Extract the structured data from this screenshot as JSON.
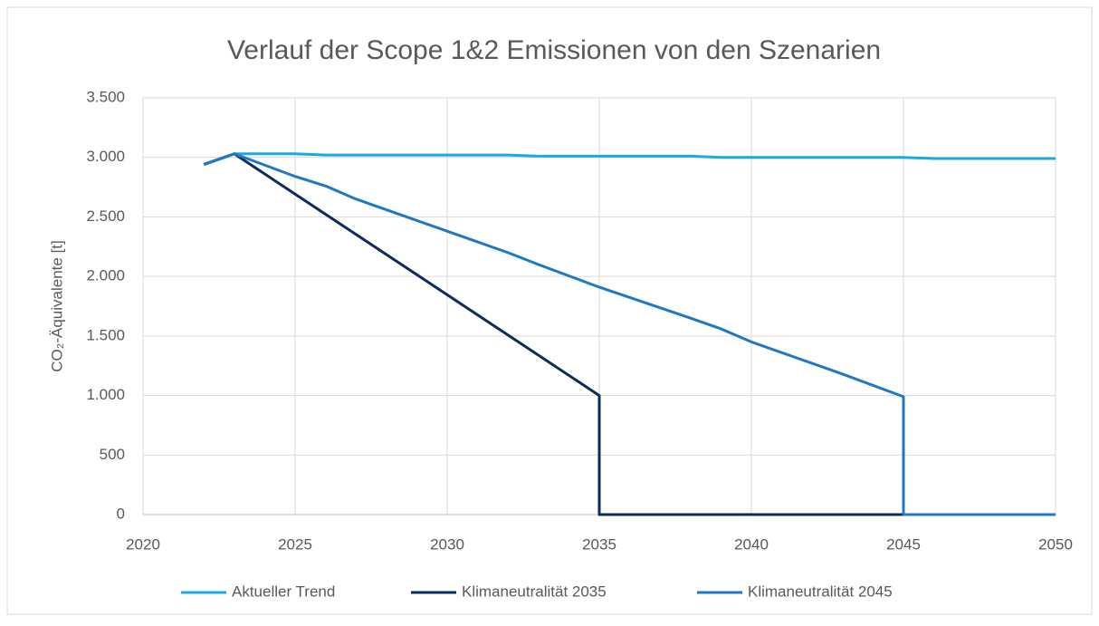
{
  "chart_data": {
    "type": "line",
    "title": "Verlauf der Scope 1&2 Emissionen von den Szenarien",
    "y_label": "CO₂-Äquivalente [t]",
    "xlim": [
      2020,
      2050
    ],
    "xticks": [
      2020,
      2025,
      2030,
      2035,
      2040,
      2045,
      2050
    ],
    "ylim": [
      0,
      3500
    ],
    "yticks": [
      0,
      500,
      {
        "value": 1000,
        "label": "1.000"
      },
      {
        "value": 1500,
        "label": "1.500"
      },
      {
        "value": 2000,
        "label": "2.000"
      },
      {
        "value": 2500,
        "label": "2.500"
      },
      {
        "value": 3000,
        "label": "3.000"
      },
      {
        "value": 3500,
        "label": "3.500"
      }
    ],
    "grid": true,
    "legend": "bottom",
    "series": [
      {
        "name": "Aktueller Trend",
        "color": "#1ba9e1",
        "x": [
          2022,
          2023,
          2025,
          2026,
          2030,
          2032,
          2033,
          2035,
          2038,
          2039,
          2040,
          2045,
          2046,
          2050
        ],
        "values": [
          2940,
          3030,
          3030,
          3020,
          3020,
          3020,
          3010,
          3010,
          3010,
          3000,
          3000,
          3000,
          2990,
          2990
        ]
      },
      {
        "name": "Klimaneutralität 2035",
        "color": "#0e2a5f",
        "x": [
          2022,
          2023,
          2035,
          2035,
          2050
        ],
        "values": [
          2940,
          3030,
          1000,
          0,
          0
        ]
      },
      {
        "name": "Klimaneutralität 2045",
        "color": "#1f78c1",
        "x": [
          2022,
          2023,
          2025,
          2026,
          2027,
          2028,
          2030,
          2032,
          2033,
          2035,
          2038,
          2039,
          2040,
          2042,
          2043,
          2045,
          2045,
          2050
        ],
        "values": [
          2940,
          3030,
          2840,
          2760,
          2650,
          2560,
          2380,
          2200,
          2100,
          1910,
          1650,
          1560,
          1450,
          1270,
          1180,
          990,
          0,
          0
        ]
      }
    ]
  }
}
